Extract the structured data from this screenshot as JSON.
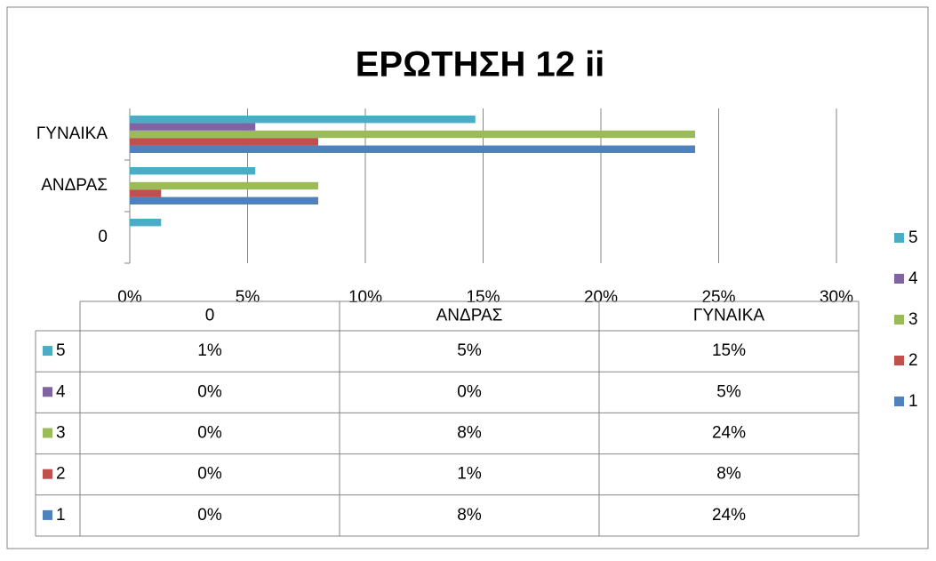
{
  "chart_data": {
    "type": "bar",
    "orientation": "horizontal",
    "title": "ΕΡΩΤΗΣΗ 12 ii",
    "categories": [
      "0",
      "ΑΝΔΡΑΣ",
      "ΓΥΝΑΙΚΑ"
    ],
    "series": [
      {
        "name": "1",
        "color": "#4f81bd",
        "values": [
          0,
          8,
          24
        ],
        "value_labels": [
          "0%",
          "8%",
          "24%"
        ]
      },
      {
        "name": "2",
        "color": "#c0504d",
        "values": [
          0,
          1.33,
          8
        ],
        "value_labels": [
          "0%",
          "1%",
          "8%"
        ]
      },
      {
        "name": "3",
        "color": "#9bbb59",
        "values": [
          0,
          8,
          24
        ],
        "value_labels": [
          "0%",
          "8%",
          "24%"
        ]
      },
      {
        "name": "4",
        "color": "#8064a2",
        "values": [
          0,
          0,
          5.33
        ],
        "value_labels": [
          "0%",
          "0%",
          "5%"
        ]
      },
      {
        "name": "5",
        "color": "#4bacc6",
        "values": [
          1.33,
          5.33,
          14.67
        ],
        "value_labels": [
          "1%",
          "5%",
          "15%"
        ]
      }
    ],
    "xlim": [
      0,
      30
    ],
    "xticks": [
      {
        "value": 0,
        "label": "0%"
      },
      {
        "value": 5,
        "label": "5%"
      },
      {
        "value": 10,
        "label": "10%"
      },
      {
        "value": 15,
        "label": "15%"
      },
      {
        "value": 20,
        "label": "20%"
      },
      {
        "value": 25,
        "label": "25%"
      },
      {
        "value": 30,
        "label": "30%"
      }
    ],
    "grid": true,
    "legend": "right",
    "data_table": true
  }
}
